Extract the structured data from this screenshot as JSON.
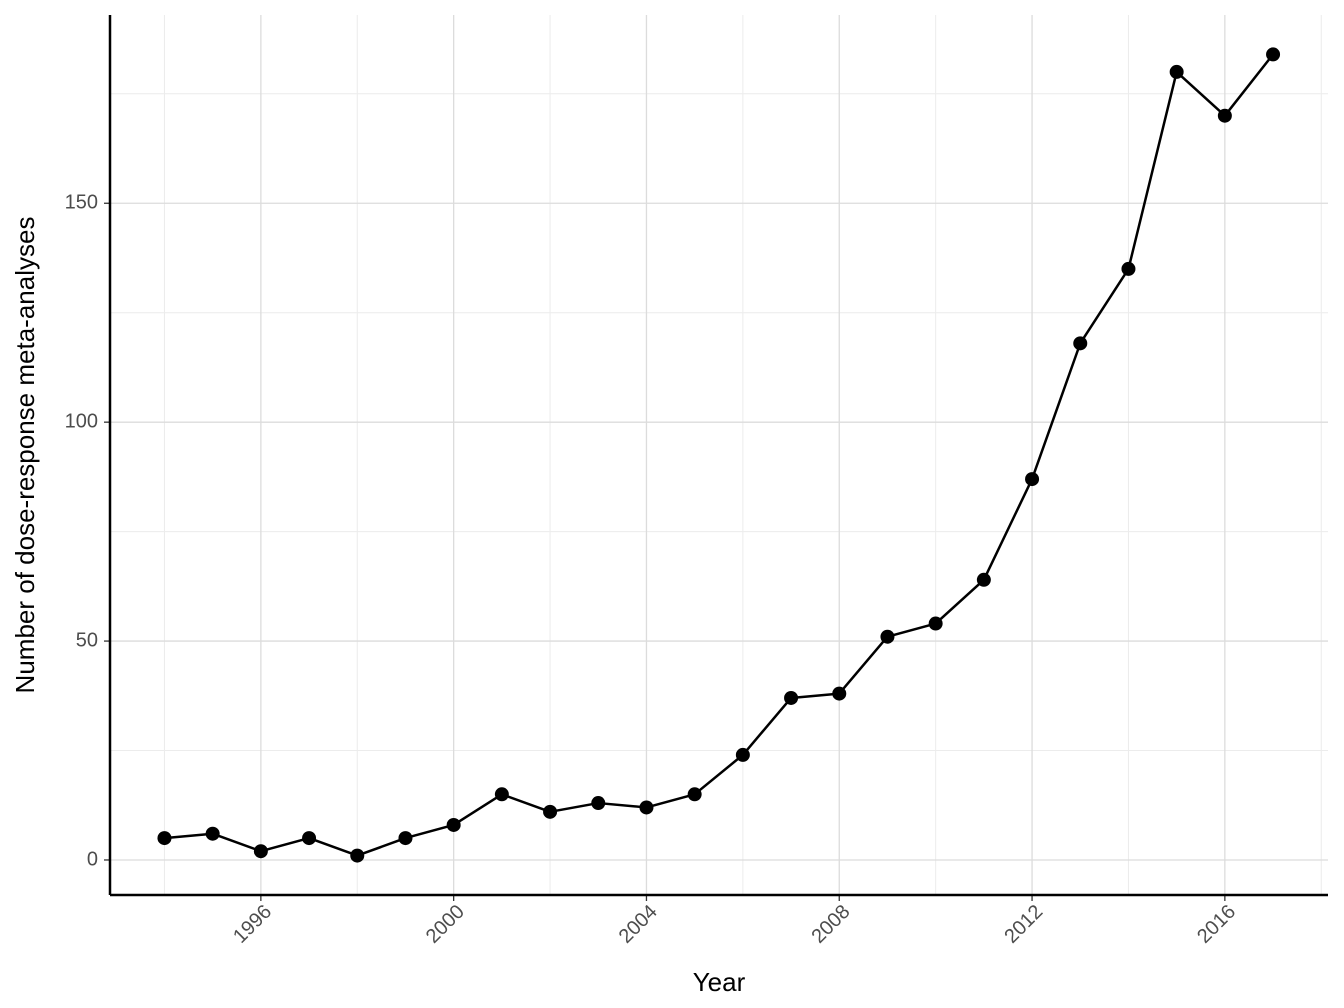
{
  "chart_data": {
    "type": "line",
    "x_label": "Year",
    "y_label": "Number of dose-response meta-analyses",
    "x": [
      1994,
      1995,
      1996,
      1997,
      1998,
      1999,
      2000,
      2001,
      2002,
      2003,
      2004,
      2005,
      2006,
      2007,
      2008,
      2009,
      2010,
      2011,
      2012,
      2013,
      2014,
      2015,
      2016,
      2017
    ],
    "values": [
      5,
      6,
      2,
      5,
      1,
      5,
      8,
      15,
      11,
      13,
      12,
      15,
      24,
      37,
      38,
      51,
      54,
      64,
      87,
      118,
      135,
      180,
      170,
      184
    ],
    "color": "#000000",
    "xlim": [
      1992.87,
      2018.14
    ],
    "xticks": [
      1996,
      2000,
      2004,
      2008,
      2012,
      2016
    ],
    "ylim": [
      -8,
      193
    ],
    "yticks": [
      0,
      50,
      100,
      150
    ],
    "grid": true
  }
}
